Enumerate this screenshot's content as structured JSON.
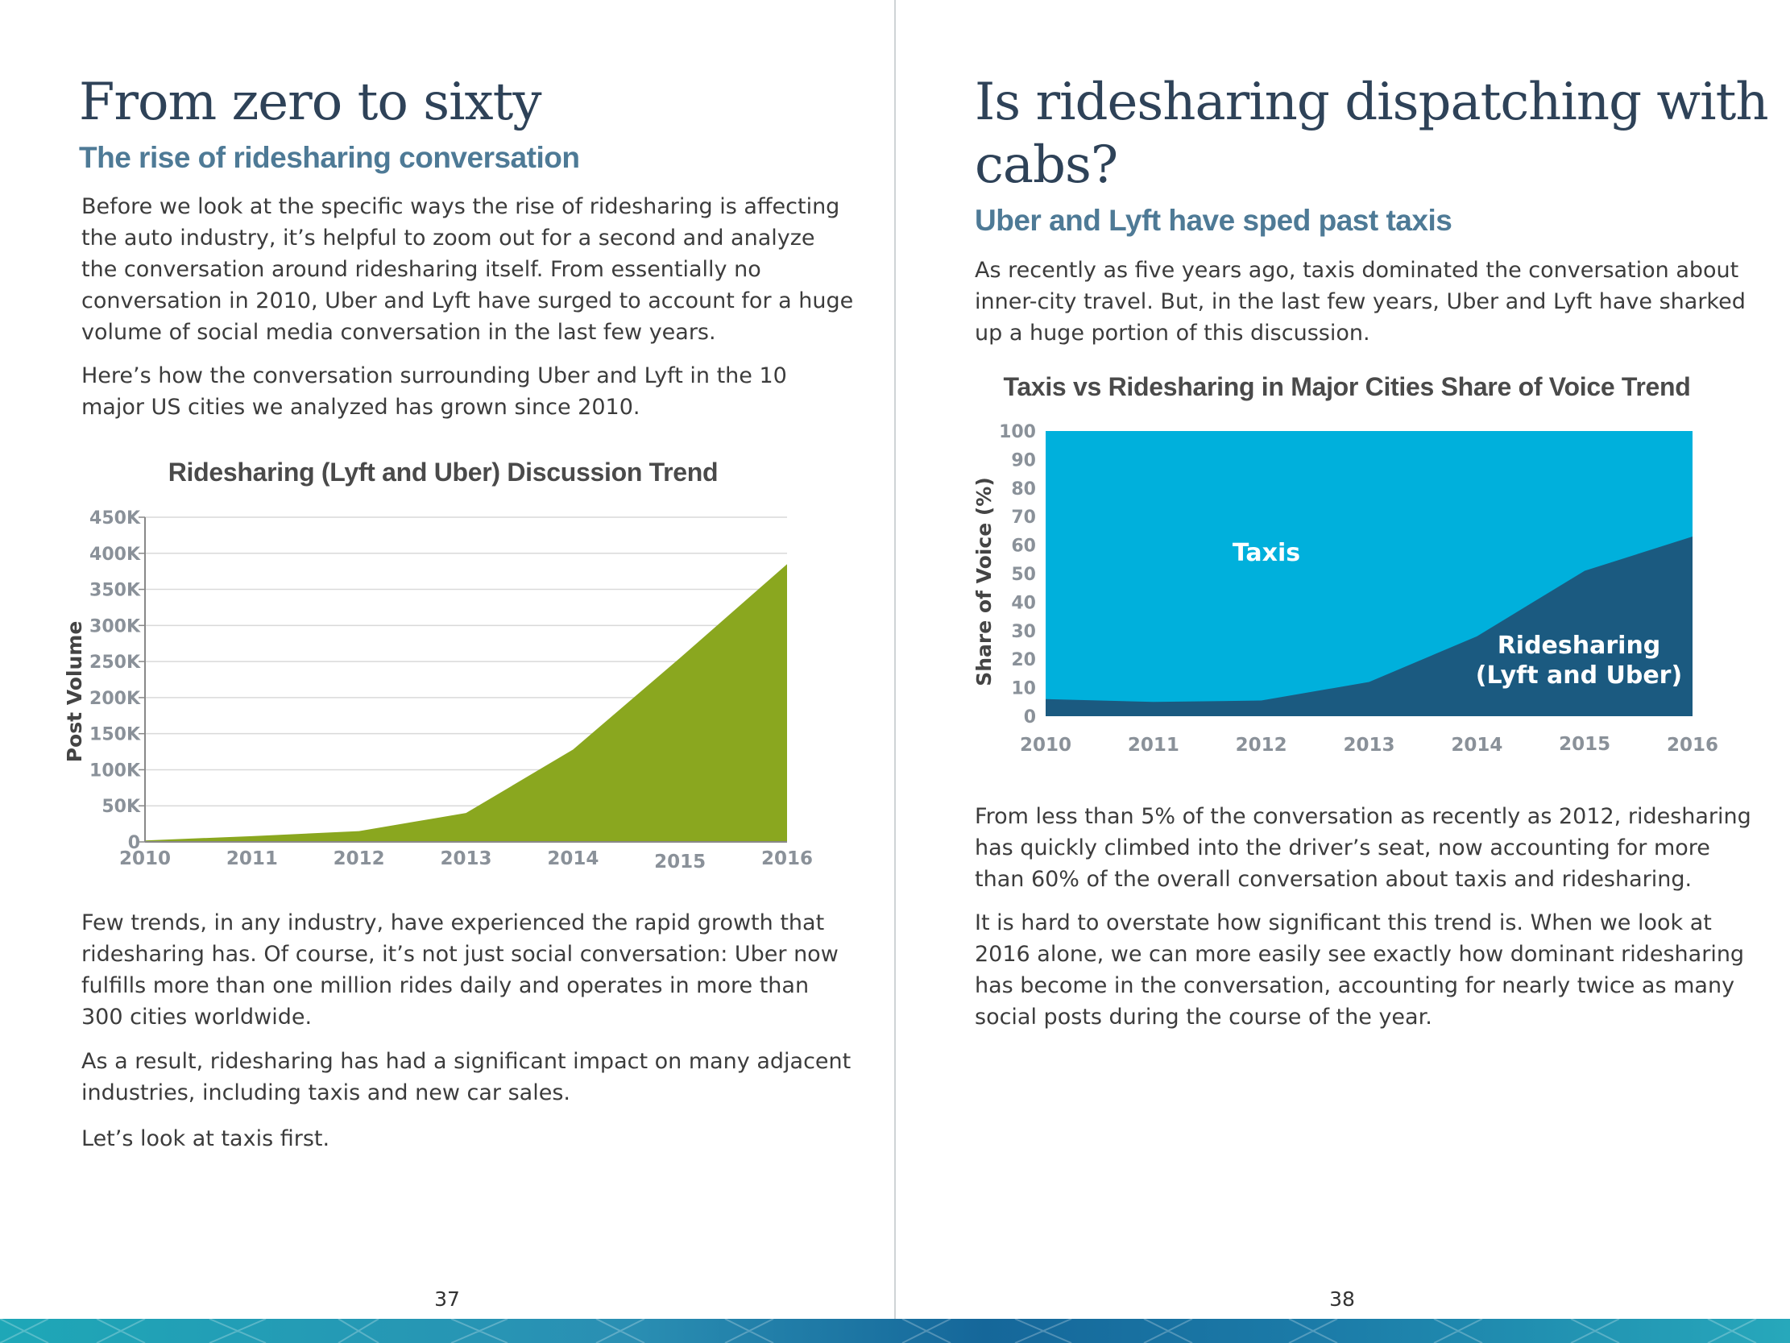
{
  "left": {
    "title": "From zero to sixty",
    "subtitle": "The rise of ridesharing conversation",
    "para1": [
      "Before we look at the specific ways the rise of ridesharing is affecting",
      "the auto industry, it’s helpful to zoom out for a second and analyze",
      "the conversation around ridesharing itself. From essentially no",
      "conversation in 2010, Uber and Lyft have surged to account for a huge",
      "volume of social media conversation in the last few years."
    ],
    "para2": [
      "Here’s how the conversation surrounding Uber and Lyft in the 10",
      "major US cities we analyzed has grown since 2010."
    ],
    "para3": [
      "Few trends, in any industry, have experienced the rapid growth that",
      "ridesharing has. Of course, it’s not just social conversation: Uber now",
      "fulfills more than one million rides daily and operates in more than",
      "300 cities worldwide."
    ],
    "para4": [
      "As a result, ridesharing has had a significant impact on many adjacent",
      "industries, including taxis and new car sales."
    ],
    "para5": [
      "Let’s look at taxis first."
    ],
    "page_number": "37"
  },
  "right": {
    "title_line1": "Is ridesharing dispatching with",
    "title_line2": "cabs?",
    "subtitle": "Uber and Lyft have sped past taxis",
    "para1": [
      "As recently as five years ago, taxis dominated the conversation about",
      "inner-city travel. But, in the last few years, Uber and Lyft have sharked",
      "up a huge portion of this discussion."
    ],
    "para2": [
      "From less than 5% of the conversation as recently as 2012, ridesharing",
      "has quickly climbed into the driver’s seat, now accounting for more",
      "than 60% of the overall conversation about taxis and ridesharing."
    ],
    "para3": [
      "It is hard to overstate how significant this trend is. When we look at",
      "2016 alone, we can more easily see exactly how dominant ridesharing",
      "has become in the conversation, accounting for nearly twice as many",
      "social posts during the course of the year."
    ],
    "page_number": "38"
  },
  "colors": {
    "heading": "#2e4258",
    "subheading": "#4e7a96",
    "ridesharing_green": "#8aa71f",
    "taxis_blue": "#00b0dc",
    "ridesharing_navy": "#1b5a80",
    "axis_label": "#8a9199"
  },
  "chart_data": [
    {
      "type": "area",
      "title": "Ridesharing (Lyft and Uber) Discussion Trend",
      "xlabel": "",
      "ylabel": "Post Volume",
      "x": [
        "2010",
        "2011",
        "2012",
        "2013",
        "2014",
        "2015",
        "2016"
      ],
      "series": [
        {
          "name": "Ridesharing (Lyft and Uber)",
          "values": [
            2000,
            8000,
            15000,
            40000,
            128000,
            255000,
            385000
          ]
        }
      ],
      "ylim": [
        0,
        450000
      ],
      "yticks": [
        "0",
        "50K",
        "100K",
        "150K",
        "200K",
        "250K",
        "300K",
        "350K",
        "400K",
        "450K"
      ],
      "grid": true
    },
    {
      "type": "area",
      "title": "Taxis vs Ridesharing in Major Cities Share of Voice Trend",
      "xlabel": "",
      "ylabel": "Share of Voice (%)",
      "x": [
        "2010",
        "2011",
        "2012",
        "2013",
        "2014",
        "2015",
        "2016"
      ],
      "series": [
        {
          "name": "Ridesharing (Lyft and Uber)",
          "values": [
            6,
            5,
            5.5,
            12,
            28,
            51,
            63
          ]
        },
        {
          "name": "Taxis",
          "values": [
            94,
            95,
            94.5,
            88,
            72,
            49,
            37
          ]
        }
      ],
      "stacked": true,
      "ylim": [
        0,
        100
      ],
      "yticks": [
        "0",
        "10",
        "20",
        "30",
        "40",
        "50",
        "60",
        "70",
        "80",
        "90",
        "100"
      ],
      "annotations": {
        "taxis_label": "Taxis",
        "ride_label_line1": "Ridesharing",
        "ride_label_line2": "(Lyft and Uber)"
      }
    }
  ]
}
